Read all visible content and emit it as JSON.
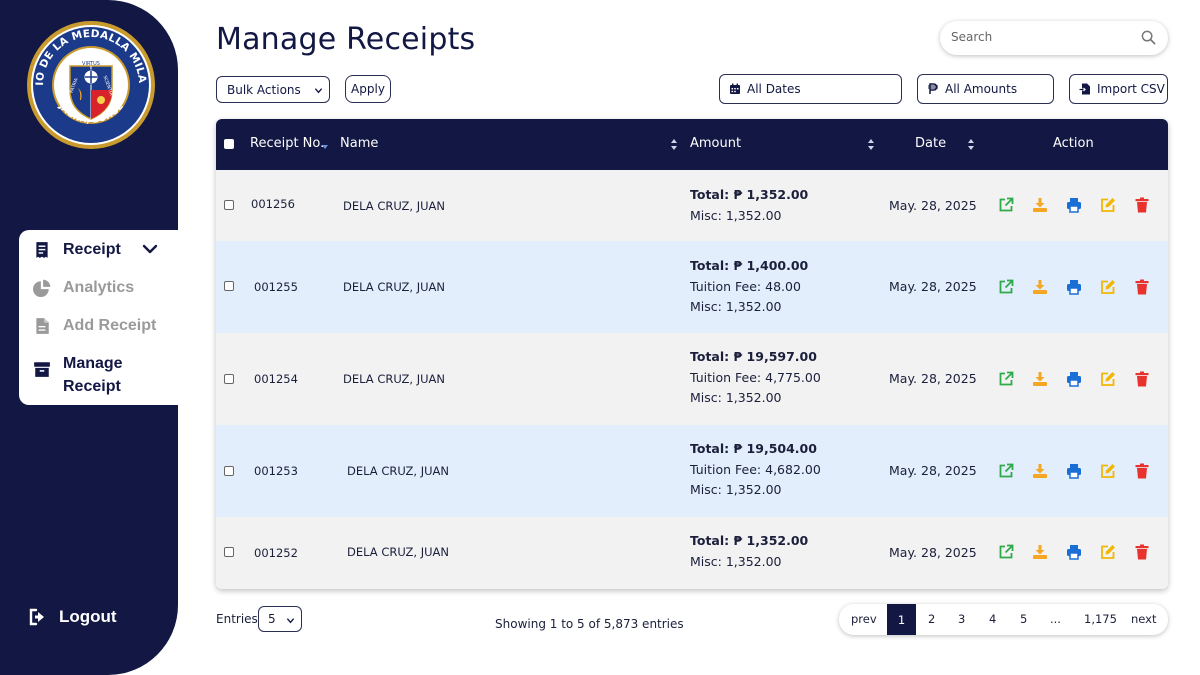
{
  "sidebar": {
    "logo": {
      "top_text": "COLEGIO DE LA MEDALLA MILAGROSA",
      "bottom_text": "JAGNA, BOHOL",
      "shield_words": [
        "VIRTUS",
        "PATRIA",
        "SCIENTIA"
      ]
    },
    "nav": [
      {
        "label": "Receipt",
        "icon": "receipt-icon",
        "expanded": true
      },
      {
        "label": "Analytics",
        "icon": "pie-chart-icon"
      },
      {
        "label": "Add Receipt",
        "icon": "file-icon"
      },
      {
        "label": "Manage Receipt",
        "icon": "archive-icon",
        "active": true
      }
    ],
    "logout_label": "Logout"
  },
  "header": {
    "title": "Manage Receipts",
    "search_placeholder": "Search"
  },
  "toolbar": {
    "bulk_actions": "Bulk Actions",
    "apply": "Apply",
    "all_dates": "All Dates",
    "all_amounts": "All Amounts",
    "import_csv": "Import CSV"
  },
  "table": {
    "columns": {
      "receipt_no": "Receipt No.",
      "name": "Name",
      "amount": "Amount",
      "date": "Date",
      "action": "Action"
    },
    "rows": [
      {
        "receipt_no": "001256",
        "name": "DELA CRUZ, JUAN",
        "total": "Total: ₱ 1,352.00",
        "lines": [
          "Misc: 1,352.00"
        ],
        "date": "May. 28, 2025"
      },
      {
        "receipt_no": "001255",
        "name": "DELA CRUZ, JUAN",
        "total": "Total: ₱ 1,400.00",
        "lines": [
          "Tuition Fee: 48.00",
          "Misc: 1,352.00"
        ],
        "date": "May. 28, 2025"
      },
      {
        "receipt_no": "001254",
        "name": "DELA CRUZ, JUAN",
        "total": "Total: ₱ 19,597.00",
        "lines": [
          "Tuition Fee: 4,775.00",
          "Misc: 1,352.00"
        ],
        "date": "May. 28, 2025"
      },
      {
        "receipt_no": "001253",
        "name": "DELA CRUZ, JUAN",
        "total": "Total: ₱ 19,504.00",
        "lines": [
          "Tuition Fee: 4,682.00",
          "Misc: 1,352.00"
        ],
        "date": "May. 28, 2025"
      },
      {
        "receipt_no": "001252",
        "name": "DELA CRUZ, JUAN",
        "total": "Total: ₱ 1,352.00",
        "lines": [
          "Misc: 1,352.00"
        ],
        "date": "May. 28, 2025"
      }
    ],
    "actions": [
      "open-icon",
      "download-icon",
      "print-icon",
      "edit-icon",
      "delete-icon"
    ]
  },
  "footer": {
    "entries_label": "Entries",
    "entries_value": "5",
    "showing": "Showing 1 to 5 of 5,873 entries",
    "pager": {
      "prev": "prev",
      "pages": [
        "1",
        "2",
        "3",
        "4",
        "5",
        "...",
        "1,175"
      ],
      "current": "1",
      "next": "next"
    }
  },
  "colors": {
    "navy": "#121743",
    "row_alt": "#e2eefb",
    "row_plain": "#f2f2f2",
    "open": "#2eaa4a",
    "download": "#f5a623",
    "print": "#1a6fd6",
    "edit": "#f2b705",
    "delete": "#e8322e"
  }
}
